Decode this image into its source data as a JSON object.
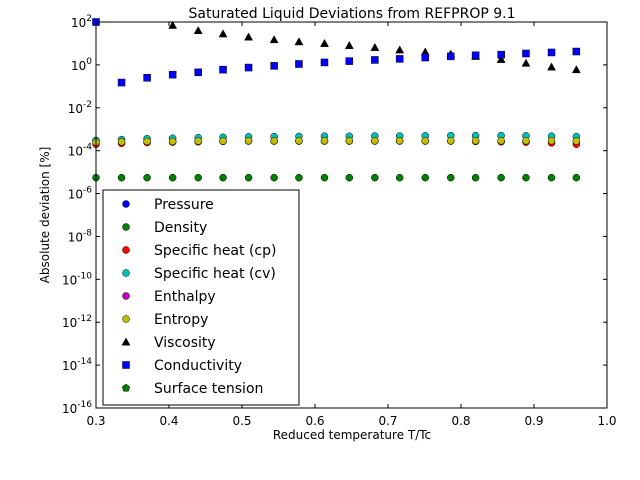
{
  "chart_data": {
    "type": "scatter",
    "title": "Saturated Liquid Deviations from REFPROP 9.1",
    "xlabel": "Reduced temperature T/Tc",
    "ylabel": "Absolute deviation [%]",
    "xlim": [
      0.3,
      1.0
    ],
    "ylim_log10": [
      -16,
      2
    ],
    "y_scale": "log",
    "grid": false,
    "legend_position": "lower-left",
    "x_ticks": [
      "0.3",
      "0.4",
      "0.5",
      "0.6",
      "0.7",
      "0.8",
      "0.9",
      "1.0"
    ],
    "y_tick_exponents": [
      "2",
      "0",
      "-2",
      "-4",
      "-6",
      "-8",
      "-10",
      "-12",
      "-14",
      "-16"
    ],
    "y_tick_base": "10",
    "series": [
      {
        "name": "Pressure",
        "marker": "circle",
        "color": "#0000ff",
        "x": [],
        "y": []
      },
      {
        "name": "Density",
        "marker": "circle",
        "color": "#008000",
        "x": [
          0.3,
          0.335,
          0.37,
          0.405,
          0.44,
          0.474,
          0.509,
          0.544,
          0.578,
          0.613,
          0.647,
          0.682,
          0.716,
          0.751,
          0.786,
          0.82,
          0.855,
          0.889,
          0.924,
          0.958
        ],
        "y": [
          5.5e-06,
          5.5e-06,
          5.5e-06,
          5.5e-06,
          5.5e-06,
          5.5e-06,
          5.5e-06,
          5.5e-06,
          5.5e-06,
          5.5e-06,
          5.5e-06,
          5.5e-06,
          5.5e-06,
          5.5e-06,
          5.5e-06,
          5.5e-06,
          5.5e-06,
          5.5e-06,
          5.5e-06,
          5.5e-06
        ]
      },
      {
        "name": "Specific heat (cp)",
        "marker": "circle",
        "color": "#ff0000",
        "x": [
          0.3,
          0.335,
          0.37,
          0.405,
          0.44,
          0.474,
          0.509,
          0.544,
          0.578,
          0.613,
          0.647,
          0.682,
          0.716,
          0.751,
          0.786,
          0.82,
          0.855,
          0.889,
          0.924,
          0.958
        ],
        "y": [
          0.0002,
          0.00022,
          0.00024,
          0.00025,
          0.00026,
          0.00027,
          0.00028,
          0.00028,
          0.00028,
          0.00028,
          0.00028,
          0.00028,
          0.00028,
          0.00028,
          0.00028,
          0.00027,
          0.00026,
          0.00025,
          0.00023,
          0.0002
        ]
      },
      {
        "name": "Specific heat (cv)",
        "marker": "circle",
        "color": "#00bfbf",
        "x": [
          0.3,
          0.335,
          0.37,
          0.405,
          0.44,
          0.474,
          0.509,
          0.544,
          0.578,
          0.613,
          0.647,
          0.682,
          0.716,
          0.751,
          0.786,
          0.82,
          0.855,
          0.889,
          0.924,
          0.958
        ],
        "y": [
          0.0003,
          0.00033,
          0.00036,
          0.00038,
          0.0004,
          0.00042,
          0.00044,
          0.00045,
          0.00046,
          0.00047,
          0.00047,
          0.00048,
          0.00048,
          0.00049,
          0.0005,
          0.0005,
          0.0005,
          0.00049,
          0.00047,
          0.00045
        ]
      },
      {
        "name": "Enthalpy",
        "marker": "circle",
        "color": "#bf00bf",
        "x": [],
        "y": []
      },
      {
        "name": "Entropy",
        "marker": "circle",
        "color": "#bfbf00",
        "x": [
          0.3,
          0.335,
          0.37,
          0.405,
          0.44,
          0.474,
          0.509,
          0.544,
          0.578,
          0.613,
          0.647,
          0.682,
          0.716,
          0.751,
          0.786,
          0.82,
          0.855,
          0.889,
          0.924,
          0.958
        ],
        "y": [
          0.00025,
          0.00026,
          0.00027,
          0.00027,
          0.00028,
          0.00028,
          0.00029,
          0.00029,
          0.00029,
          0.00029,
          0.00029,
          0.00029,
          0.00029,
          0.00029,
          0.00029,
          0.00029,
          0.00029,
          0.00029,
          0.00029,
          0.00028
        ]
      },
      {
        "name": "Viscosity",
        "marker": "triangle",
        "color": "#000000",
        "x": [
          0.405,
          0.44,
          0.474,
          0.509,
          0.544,
          0.578,
          0.613,
          0.647,
          0.682,
          0.716,
          0.751,
          0.786,
          0.82,
          0.855,
          0.889,
          0.924,
          0.958
        ],
        "y": [
          70,
          40,
          28,
          20,
          15,
          12,
          10,
          8,
          6.5,
          5,
          4,
          3.2,
          2.5,
          1.8,
          1.2,
          0.8,
          0.6
        ]
      },
      {
        "name": "Conductivity",
        "marker": "square",
        "color": "#0000ff",
        "x": [
          0.3,
          0.335,
          0.37,
          0.405,
          0.44,
          0.474,
          0.509,
          0.544,
          0.578,
          0.613,
          0.647,
          0.682,
          0.716,
          0.751,
          0.786,
          0.82,
          0.855,
          0.889,
          0.924,
          0.958
        ],
        "y": [
          100,
          0.15,
          0.25,
          0.35,
          0.45,
          0.6,
          0.75,
          0.9,
          1.1,
          1.3,
          1.5,
          1.7,
          1.9,
          2.2,
          2.5,
          2.8,
          3.0,
          3.4,
          3.8,
          4.2
        ]
      },
      {
        "name": "Surface tension",
        "marker": "pentagon",
        "color": "#008000",
        "x": [],
        "y": []
      }
    ]
  }
}
